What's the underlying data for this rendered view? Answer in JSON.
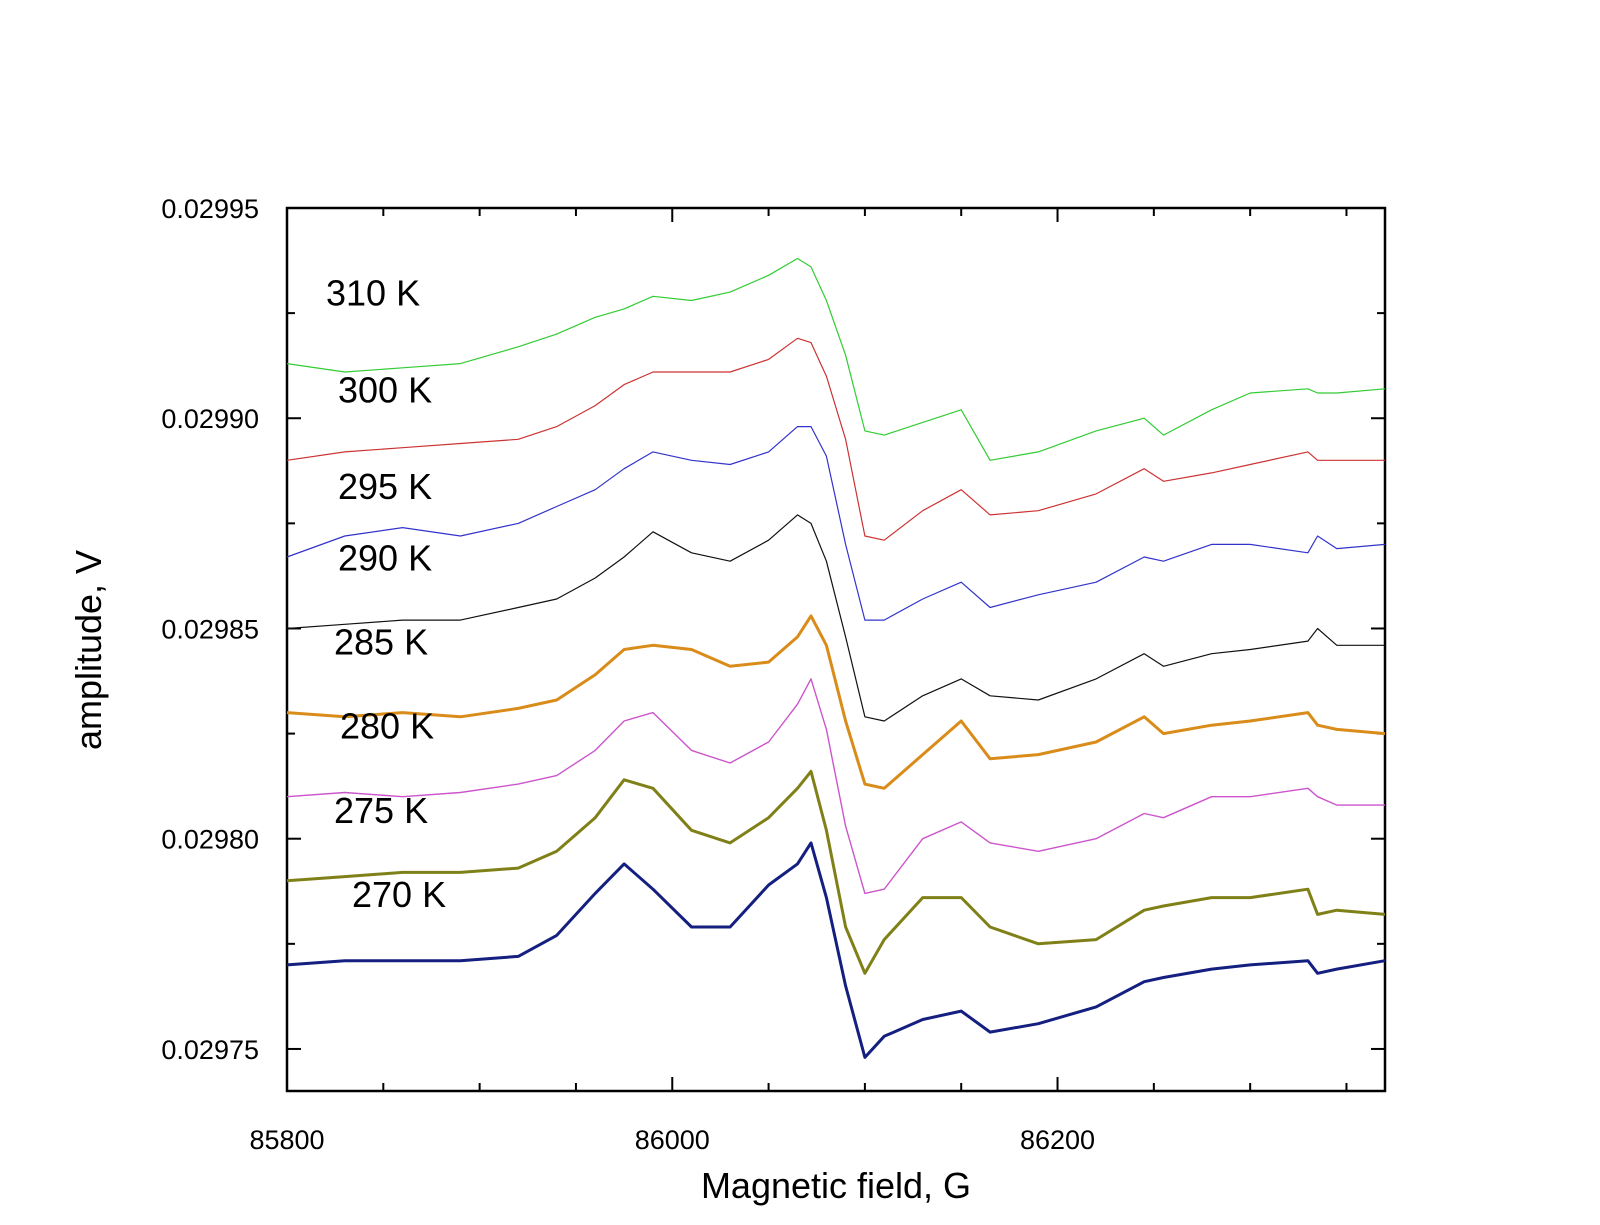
{
  "chart_data": {
    "type": "line",
    "title": "",
    "xlabel": "Magnetic field, G",
    "ylabel": "amplitude, V",
    "xlim": [
      85800,
      86370
    ],
    "ylim": [
      0.02974,
      0.02995
    ],
    "x_ticks": [
      "85800",
      "86000",
      "86200"
    ],
    "y_ticks": [
      "0.02975",
      "0.02980",
      "0.02985",
      "0.02990",
      "0.02995"
    ],
    "grid": false,
    "legend": "none",
    "x": [
      85800,
      85830,
      85860,
      85890,
      85920,
      85940,
      85960,
      85975,
      85990,
      86010,
      86030,
      86050,
      86065,
      86072,
      86080,
      86090,
      86100,
      86110,
      86130,
      86150,
      86165,
      86190,
      86220,
      86245,
      86255,
      86280,
      86300,
      86330,
      86335,
      86345,
      86370
    ],
    "series": [
      {
        "name": "310 K",
        "color": "#33cc33",
        "width": 1.2,
        "values": [
          0.029913,
          0.029911,
          0.029912,
          0.029913,
          0.029917,
          0.02992,
          0.029924,
          0.029926,
          0.029929,
          0.029928,
          0.02993,
          0.029934,
          0.029938,
          0.029936,
          0.029928,
          0.029915,
          0.029897,
          0.029896,
          0.029899,
          0.029902,
          0.02989,
          0.029892,
          0.029897,
          0.0299,
          0.029896,
          0.029902,
          0.029906,
          0.029907,
          0.029906,
          0.029906,
          0.029907
        ]
      },
      {
        "name": "300 K",
        "color": "#cc3333",
        "width": 1.2,
        "values": [
          0.02989,
          0.029892,
          0.029893,
          0.029894,
          0.029895,
          0.029898,
          0.029903,
          0.029908,
          0.029911,
          0.029911,
          0.029911,
          0.029914,
          0.029919,
          0.029918,
          0.02991,
          0.029895,
          0.029872,
          0.029871,
          0.029878,
          0.029883,
          0.029877,
          0.029878,
          0.029882,
          0.029888,
          0.029885,
          0.029887,
          0.029889,
          0.029892,
          0.02989,
          0.02989,
          0.02989
        ]
      },
      {
        "name": "295 K",
        "color": "#3333cc",
        "width": 1.2,
        "values": [
          0.029867,
          0.029872,
          0.029874,
          0.029872,
          0.029875,
          0.029879,
          0.029883,
          0.029888,
          0.029892,
          0.02989,
          0.029889,
          0.029892,
          0.029898,
          0.029898,
          0.029891,
          0.02987,
          0.029852,
          0.029852,
          0.029857,
          0.029861,
          0.029855,
          0.029858,
          0.029861,
          0.029867,
          0.029866,
          0.02987,
          0.02987,
          0.029868,
          0.029872,
          0.029869,
          0.02987
        ]
      },
      {
        "name": "290 K",
        "color": "#111111",
        "width": 1.2,
        "values": [
          0.02985,
          0.029851,
          0.029852,
          0.029852,
          0.029855,
          0.029857,
          0.029862,
          0.029867,
          0.029873,
          0.029868,
          0.029866,
          0.029871,
          0.029877,
          0.029875,
          0.029866,
          0.029848,
          0.029829,
          0.029828,
          0.029834,
          0.029838,
          0.029834,
          0.029833,
          0.029838,
          0.029844,
          0.029841,
          0.029844,
          0.029845,
          0.029847,
          0.02985,
          0.029846,
          0.029846
        ]
      },
      {
        "name": "285 K",
        "color": "#d98c1a",
        "width": 3.0,
        "values": [
          0.02983,
          0.029829,
          0.02983,
          0.029829,
          0.029831,
          0.029833,
          0.029839,
          0.029845,
          0.029846,
          0.029845,
          0.029841,
          0.029842,
          0.029848,
          0.029853,
          0.029846,
          0.029828,
          0.029813,
          0.029812,
          0.02982,
          0.029828,
          0.029819,
          0.02982,
          0.029823,
          0.029829,
          0.029825,
          0.029827,
          0.029828,
          0.02983,
          0.029827,
          0.029826,
          0.029825
        ]
      },
      {
        "name": "280 K",
        "color": "#cc55cc",
        "width": 1.4,
        "values": [
          0.02981,
          0.029811,
          0.02981,
          0.029811,
          0.029813,
          0.029815,
          0.029821,
          0.029828,
          0.02983,
          0.029821,
          0.029818,
          0.029823,
          0.029832,
          0.029838,
          0.029826,
          0.029803,
          0.029787,
          0.029788,
          0.0298,
          0.029804,
          0.029799,
          0.029797,
          0.0298,
          0.029806,
          0.029805,
          0.02981,
          0.02981,
          0.029812,
          0.02981,
          0.029808,
          0.029808
        ]
      },
      {
        "name": "275 K",
        "color": "#808019",
        "width": 3.0,
        "values": [
          0.02979,
          0.029791,
          0.029792,
          0.029792,
          0.029793,
          0.029797,
          0.029805,
          0.029814,
          0.029812,
          0.029802,
          0.029799,
          0.029805,
          0.029812,
          0.029816,
          0.029802,
          0.029779,
          0.029768,
          0.029776,
          0.029786,
          0.029786,
          0.029779,
          0.029775,
          0.029776,
          0.029783,
          0.029784,
          0.029786,
          0.029786,
          0.029788,
          0.029782,
          0.029783,
          0.029782
        ]
      },
      {
        "name": "270 K",
        "color": "#141f80",
        "width": 3.0,
        "values": [
          0.02977,
          0.029771,
          0.029771,
          0.029771,
          0.029772,
          0.029777,
          0.029787,
          0.029794,
          0.029788,
          0.029779,
          0.029779,
          0.029789,
          0.029794,
          0.029799,
          0.029786,
          0.029765,
          0.029748,
          0.029753,
          0.029757,
          0.029759,
          0.029754,
          0.029756,
          0.02976,
          0.029766,
          0.029767,
          0.029769,
          0.02977,
          0.029771,
          0.029768,
          0.029769,
          0.029771
        ]
      }
    ]
  }
}
